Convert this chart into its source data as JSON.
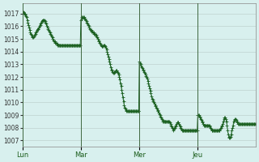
{
  "title": "",
  "background_color": "#d8f0ee",
  "plot_background": "#d8f0ee",
  "line_color": "#1a6020",
  "marker": "+",
  "markersize": 2.5,
  "linewidth": 0.7,
  "ylim": [
    1006.5,
    1017.8
  ],
  "yticks": [
    1007,
    1008,
    1009,
    1010,
    1011,
    1012,
    1013,
    1014,
    1015,
    1016,
    1017
  ],
  "xtick_labels": [
    "Lun",
    "Mar",
    "Mer",
    "Jeu"
  ],
  "xtick_positions": [
    0,
    96,
    192,
    288
  ],
  "grid_color": "#b8ccc8",
  "vline_color": "#406840",
  "vline_positions": [
    0,
    96,
    192,
    288
  ],
  "n_points": 384,
  "y_values": [
    1017.2,
    1017.2,
    1017.1,
    1017.0,
    1017.0,
    1016.9,
    1016.8,
    1016.7,
    1016.5,
    1016.3,
    1016.1,
    1015.9,
    1015.7,
    1015.5,
    1015.4,
    1015.3,
    1015.2,
    1015.1,
    1015.1,
    1015.2,
    1015.3,
    1015.4,
    1015.5,
    1015.6,
    1015.7,
    1015.8,
    1015.8,
    1015.9,
    1016.0,
    1016.1,
    1016.2,
    1016.3,
    1016.4,
    1016.5,
    1016.5,
    1016.5,
    1016.5,
    1016.4,
    1016.3,
    1016.2,
    1016.0,
    1015.9,
    1015.8,
    1015.7,
    1015.6,
    1015.5,
    1015.4,
    1015.3,
    1015.2,
    1015.1,
    1015.0,
    1014.9,
    1014.8,
    1014.8,
    1014.7,
    1014.7,
    1014.6,
    1014.6,
    1014.5,
    1014.5,
    1014.5,
    1014.5,
    1014.5,
    1014.5,
    1014.5,
    1014.5,
    1014.5,
    1014.5,
    1014.5,
    1014.5,
    1014.5,
    1014.5,
    1014.5,
    1014.5,
    1014.5,
    1014.5,
    1014.5,
    1014.5,
    1014.5,
    1014.5,
    1014.5,
    1014.5,
    1014.5,
    1014.5,
    1014.5,
    1014.5,
    1014.5,
    1014.5,
    1014.5,
    1014.5,
    1014.5,
    1014.5,
    1014.5,
    1014.5,
    1014.5,
    1014.5,
    1016.5,
    1016.6,
    1016.7,
    1016.7,
    1016.7,
    1016.7,
    1016.6,
    1016.6,
    1016.5,
    1016.4,
    1016.3,
    1016.2,
    1016.1,
    1016.0,
    1015.9,
    1015.8,
    1015.7,
    1015.7,
    1015.6,
    1015.6,
    1015.5,
    1015.5,
    1015.4,
    1015.4,
    1015.3,
    1015.3,
    1015.2,
    1015.1,
    1015.0,
    1014.9,
    1014.8,
    1014.7,
    1014.6,
    1014.5,
    1014.4,
    1014.4,
    1014.4,
    1014.5,
    1014.5,
    1014.5,
    1014.4,
    1014.3,
    1014.2,
    1014.0,
    1013.8,
    1013.6,
    1013.4,
    1013.2,
    1013.0,
    1012.8,
    1012.6,
    1012.5,
    1012.4,
    1012.3,
    1012.3,
    1012.4,
    1012.4,
    1012.5,
    1012.5,
    1012.5,
    1012.4,
    1012.3,
    1012.2,
    1012.0,
    1011.8,
    1011.5,
    1011.3,
    1011.0,
    1010.7,
    1010.4,
    1010.1,
    1009.8,
    1009.6,
    1009.5,
    1009.4,
    1009.3,
    1009.3,
    1009.3,
    1009.3,
    1009.3,
    1009.3,
    1009.3,
    1009.3,
    1009.3,
    1009.3,
    1009.3,
    1009.3,
    1009.3,
    1009.3,
    1009.3,
    1009.3,
    1009.3,
    1009.3,
    1009.3,
    1009.3,
    1009.3,
    1013.2,
    1013.1,
    1013.0,
    1012.9,
    1012.8,
    1012.7,
    1012.6,
    1012.5,
    1012.4,
    1012.3,
    1012.2,
    1012.1,
    1012.0,
    1011.9,
    1011.7,
    1011.5,
    1011.3,
    1011.1,
    1010.9,
    1010.7,
    1010.5,
    1010.3,
    1010.2,
    1010.1,
    1010.0,
    1009.9,
    1009.8,
    1009.7,
    1009.6,
    1009.5,
    1009.4,
    1009.3,
    1009.2,
    1009.1,
    1009.0,
    1008.9,
    1008.8,
    1008.7,
    1008.6,
    1008.5,
    1008.5,
    1008.5,
    1008.5,
    1008.5,
    1008.5,
    1008.5,
    1008.5,
    1008.5,
    1008.5,
    1008.5,
    1008.4,
    1008.3,
    1008.2,
    1008.1,
    1008.0,
    1007.9,
    1007.8,
    1007.9,
    1008.0,
    1008.1,
    1008.2,
    1008.3,
    1008.4,
    1008.4,
    1008.4,
    1008.3,
    1008.2,
    1008.1,
    1008.0,
    1007.9,
    1007.8,
    1007.8,
    1007.8,
    1007.8,
    1007.8,
    1007.8,
    1007.8,
    1007.8,
    1007.8,
    1007.8,
    1007.8,
    1007.8,
    1007.8,
    1007.8,
    1007.8,
    1007.8,
    1007.8,
    1007.8,
    1007.8,
    1007.8,
    1007.8,
    1007.8,
    1007.8,
    1007.8,
    1007.8,
    1007.8,
    1009.0,
    1009.0,
    1009.0,
    1008.9,
    1008.8,
    1008.7,
    1008.6,
    1008.5,
    1008.4,
    1008.3,
    1008.2,
    1008.2,
    1008.2,
    1008.2,
    1008.2,
    1008.2,
    1008.2,
    1008.2,
    1008.2,
    1008.2,
    1008.1,
    1008.0,
    1007.9,
    1007.8,
    1007.8,
    1007.8,
    1007.8,
    1007.8,
    1007.8,
    1007.8,
    1007.8,
    1007.8,
    1007.8,
    1007.8,
    1007.8,
    1007.8,
    1007.8,
    1007.9,
    1008.0,
    1008.1,
    1008.2,
    1008.3,
    1008.5,
    1008.7,
    1008.8,
    1008.8,
    1008.7,
    1008.5,
    1008.2,
    1007.8,
    1007.5,
    1007.3,
    1007.2,
    1007.2,
    1007.3,
    1007.5,
    1007.8,
    1008.0,
    1008.2,
    1008.5,
    1008.6,
    1008.7,
    1008.7,
    1008.6,
    1008.5,
    1008.4,
    1008.3,
    1008.3,
    1008.3,
    1008.3,
    1008.3,
    1008.3,
    1008.3,
    1008.3,
    1008.3,
    1008.3,
    1008.3,
    1008.3,
    1008.3,
    1008.3,
    1008.3,
    1008.3,
    1008.3,
    1008.3,
    1008.3,
    1008.3,
    1008.3,
    1008.3,
    1008.3,
    1008.3,
    1008.3,
    1008.3,
    1008.3,
    1008.3,
    1008.3,
    1008.3
  ]
}
